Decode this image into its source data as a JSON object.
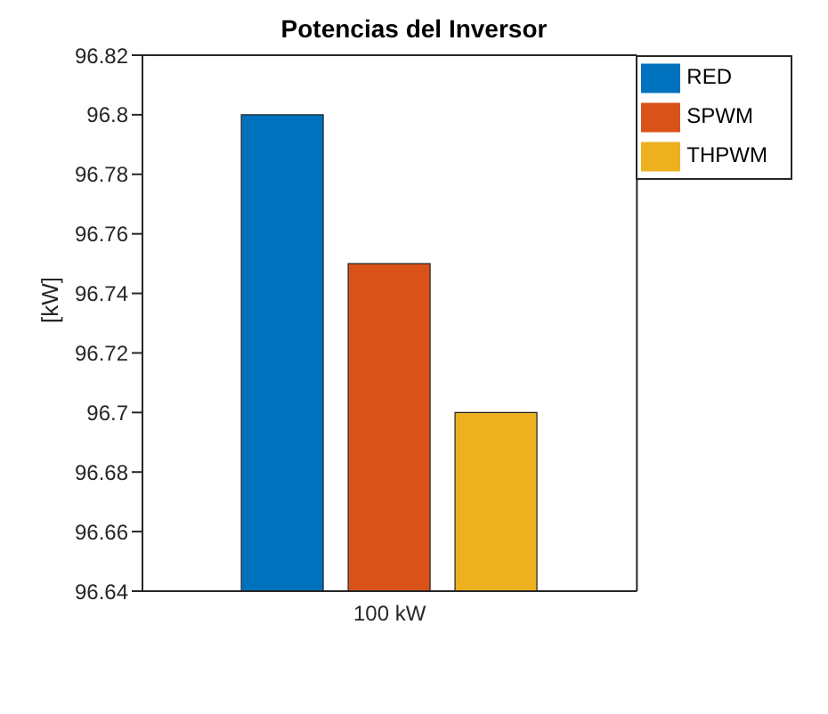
{
  "chart_data": {
    "type": "bar",
    "title": "Potencias del Inversor",
    "ylabel": "[kW]",
    "categories": [
      "100 kW"
    ],
    "series": [
      {
        "name": "RED",
        "color": "#0072bd",
        "values": [
          96.8
        ]
      },
      {
        "name": "SPWM",
        "color": "#d95319",
        "values": [
          96.75
        ]
      },
      {
        "name": "THPWM",
        "color": "#edb120",
        "values": [
          96.7
        ]
      }
    ],
    "ylim": [
      96.64,
      96.82
    ],
    "yticks": [
      96.64,
      96.66,
      96.68,
      96.7,
      96.72,
      96.74,
      96.76,
      96.78,
      96.8,
      96.82
    ],
    "grid": false,
    "legend": "top right"
  }
}
